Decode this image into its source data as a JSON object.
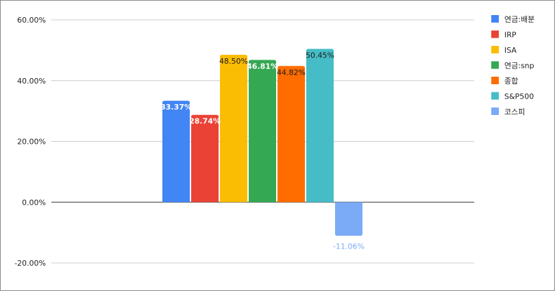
{
  "chart_data": {
    "type": "bar",
    "title": "",
    "xlabel": "",
    "ylabel": "",
    "ylim": [
      -20,
      60
    ],
    "yticks": [
      "60.00%",
      "40.00%",
      "20.00%",
      "0.00%",
      "-20.00%"
    ],
    "grid": true,
    "legend_position": "right",
    "series": [
      {
        "name": "연금:배분",
        "value": 33.37,
        "label": "33.37%",
        "color": "#4285F4",
        "label_color": "#ffffff"
      },
      {
        "name": "IRP",
        "value": 28.74,
        "label": "28.74%",
        "color": "#EA4335",
        "label_color": "#ffffff"
      },
      {
        "name": "ISA",
        "value": 48.5,
        "label": "48.50%",
        "color": "#FBBC04",
        "label_color": "#1a1a1a"
      },
      {
        "name": "연금:snp",
        "value": 46.81,
        "label": "46.81%",
        "color": "#34A853",
        "label_color": "#ffffff"
      },
      {
        "name": "종합",
        "value": 44.82,
        "label": "44.82%",
        "color": "#FF6D01",
        "label_color": "#1a1a1a"
      },
      {
        "name": "S&P500",
        "value": 50.45,
        "label": "50.45%",
        "color": "#46BDC6",
        "label_color": "#1a1a1a"
      },
      {
        "name": "코스피",
        "value": -11.06,
        "label": "-11.06%",
        "color": "#7BAAF7",
        "label_color": "#7BAAF7"
      }
    ]
  }
}
